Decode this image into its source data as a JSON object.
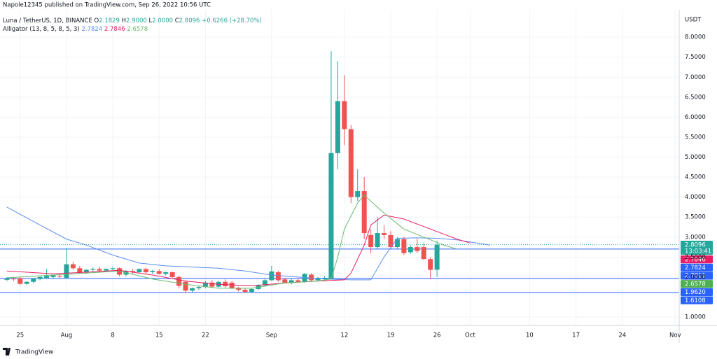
{
  "header": "Napole12345 published on TradingView.com, Sep 26, 2022 10:56 UTC",
  "chart_data": {
    "type": "candlestick",
    "symbol": "Luna / TetherUS, 1D, BINANCE",
    "ohlc_keys": [
      "O",
      "H",
      "L",
      "C"
    ],
    "ohlc_values": [
      "2.1829",
      "2.9000",
      "2.0000",
      "2.8096"
    ],
    "change": "+0.6266 (+28.70%)",
    "indicator": "Alligator (13, 8, 5, 8, 5, 3)",
    "unit": "USDT",
    "up_color": "#26a69a",
    "down_color": "#ef5350",
    "x": [
      -2,
      -1,
      0,
      1,
      2,
      3,
      4,
      5,
      6,
      7,
      8,
      9,
      10,
      11,
      12,
      13,
      14,
      15,
      16,
      17,
      18,
      19,
      20,
      21,
      22,
      23,
      24,
      25,
      26,
      27,
      28,
      29,
      30,
      31,
      32,
      33,
      34,
      35,
      36,
      37,
      38,
      39,
      40,
      41,
      42,
      43,
      44,
      45,
      46,
      47,
      48,
      49,
      50,
      51,
      52,
      53,
      54,
      55,
      56,
      57,
      58,
      59,
      60,
      61,
      62,
      63
    ],
    "open": [
      1.93,
      1.96,
      1.97,
      1.83,
      1.88,
      1.95,
      1.98,
      2.0,
      2.03,
      1.98,
      2.32,
      2.22,
      2.12,
      2.18,
      2.2,
      2.16,
      2.2,
      2.22,
      2.06,
      2.15,
      2.12,
      2.2,
      2.12,
      2.15,
      2.08,
      2.12,
      2.0,
      1.88,
      1.66,
      1.72,
      1.75,
      1.86,
      1.76,
      1.88,
      1.86,
      1.72,
      1.68,
      1.63,
      1.7,
      1.79,
      1.92,
      2.12,
      1.94,
      1.86,
      1.92,
      1.88,
      2.06,
      1.92,
      1.96,
      1.96,
      5.1,
      6.4,
      5.7,
      4.0,
      4.15,
      3.05,
      2.75,
      3.1,
      3.05,
      2.75,
      2.95,
      2.62,
      2.75,
      2.75,
      2.45,
      2.1829
    ],
    "high": [
      2.0,
      1.99,
      2.0,
      1.9,
      1.98,
      2.02,
      2.2,
      2.06,
      2.07,
      2.72,
      2.38,
      2.28,
      2.2,
      2.24,
      2.25,
      2.22,
      2.26,
      2.24,
      2.18,
      2.2,
      2.22,
      2.24,
      2.18,
      2.2,
      2.14,
      2.14,
      2.04,
      1.92,
      1.74,
      1.78,
      1.9,
      1.92,
      1.9,
      1.94,
      1.9,
      1.76,
      1.72,
      1.72,
      1.82,
      1.96,
      2.28,
      2.16,
      1.98,
      1.95,
      1.96,
      2.1,
      2.1,
      2.0,
      2.02,
      7.65,
      7.4,
      7.05,
      5.8,
      4.7,
      4.5,
      3.2,
      3.5,
      3.3,
      3.15,
      3.0,
      3.0,
      2.8,
      2.95,
      2.85,
      2.5,
      2.9
    ],
    "low": [
      1.9,
      1.9,
      1.8,
      1.8,
      1.85,
      1.92,
      1.95,
      1.96,
      1.98,
      1.95,
      2.18,
      2.08,
      2.08,
      2.14,
      2.12,
      2.12,
      2.16,
      2.02,
      2.02,
      2.08,
      2.1,
      2.08,
      2.08,
      2.06,
      2.04,
      1.98,
      1.72,
      1.6,
      1.62,
      1.68,
      1.72,
      1.72,
      1.74,
      1.74,
      1.7,
      1.64,
      1.6,
      1.6,
      1.68,
      1.76,
      1.9,
      1.88,
      1.84,
      1.82,
      1.86,
      1.86,
      1.88,
      1.9,
      1.92,
      1.94,
      4.7,
      5.3,
      3.85,
      3.9,
      2.95,
      2.6,
      2.7,
      2.95,
      2.7,
      2.7,
      2.55,
      2.58,
      2.6,
      2.42,
      1.96,
      2.0
    ],
    "close": [
      1.96,
      1.95,
      1.83,
      1.88,
      1.96,
      2.0,
      2.03,
      2.04,
      2.02,
      2.32,
      2.22,
      2.12,
      2.18,
      2.2,
      2.16,
      2.2,
      2.22,
      2.06,
      2.15,
      2.12,
      2.2,
      2.12,
      2.15,
      2.08,
      2.12,
      2.0,
      1.78,
      1.66,
      1.72,
      1.75,
      1.86,
      1.76,
      1.88,
      1.77,
      1.72,
      1.68,
      1.63,
      1.7,
      1.8,
      1.92,
      2.14,
      1.92,
      1.86,
      1.92,
      1.88,
      2.08,
      1.92,
      1.98,
      1.98,
      5.1,
      6.4,
      5.7,
      4.0,
      4.15,
      3.1,
      2.75,
      3.1,
      3.05,
      2.75,
      2.95,
      2.6,
      2.75,
      2.65,
      2.45,
      2.18,
      2.8096
    ],
    "alligator": [
      {
        "color": "#5b8def",
        "last": "2.7824",
        "x": [
          -2,
          3,
          7,
          10,
          14,
          18,
          22,
          26,
          30,
          34,
          38,
          42,
          46,
          50,
          53,
          55,
          57,
          60,
          63,
          66,
          71
        ],
        "values": [
          3.75,
          3.3,
          2.95,
          2.8,
          2.55,
          2.35,
          2.28,
          2.25,
          2.22,
          2.15,
          2.05,
          2.0,
          1.95,
          1.93,
          1.93,
          2.5,
          2.97,
          2.98,
          2.97,
          2.93,
          2.8
        ]
      },
      {
        "color": "#e91e63",
        "last": "2.7846",
        "x": [
          -2,
          5,
          10,
          15,
          20,
          25,
          30,
          35,
          40,
          45,
          49,
          50,
          52,
          53,
          55,
          58,
          62,
          66,
          68
        ],
        "values": [
          2.15,
          2.08,
          2.12,
          2.17,
          2.05,
          1.9,
          1.82,
          1.78,
          1.85,
          1.9,
          1.93,
          2.1,
          2.8,
          3.3,
          3.55,
          3.45,
          3.2,
          2.95,
          2.85
        ]
      },
      {
        "color": "#66bb6a",
        "last": "2.6578",
        "x": [
          -2,
          5,
          10,
          15,
          20,
          25,
          30,
          35,
          40,
          45,
          47,
          48,
          49,
          51,
          52,
          55,
          58,
          61,
          64,
          66
        ],
        "values": [
          1.98,
          2.05,
          2.1,
          2.15,
          1.95,
          1.82,
          1.72,
          1.72,
          1.85,
          1.9,
          1.95,
          2.5,
          3.2,
          3.85,
          4.05,
          3.6,
          3.2,
          3.0,
          2.8,
          2.7
        ]
      }
    ],
    "hlines": [
      2.7011,
      1.962,
      1.6108
    ],
    "hline_color": "#2962ff",
    "price_tags": [
      {
        "value": 2.8096,
        "color": "#26a69a"
      },
      {
        "value": 2.7846,
        "color": "#e91e63"
      },
      {
        "value": 2.7824,
        "color": "#2962ff"
      },
      {
        "value": 2.7011,
        "color": "#2962ff"
      },
      {
        "value": 2.6578,
        "color": "#4caf50"
      },
      {
        "value": 1.962,
        "label": "1.9620",
        "color": "#2962ff"
      },
      {
        "value": 1.6108,
        "color": "#2962ff"
      }
    ],
    "countdown": "13:03:41",
    "xlim": [
      -2.2,
      99.6
    ],
    "xticks": [
      {
        "value": 0,
        "label": "25"
      },
      {
        "value": 7,
        "label": "Aug"
      },
      {
        "value": 14,
        "label": "8"
      },
      {
        "value": 21,
        "label": "15"
      },
      {
        "value": 28,
        "label": "22"
      },
      {
        "value": 38,
        "label": "Sep"
      },
      {
        "value": 49,
        "label": "12"
      },
      {
        "value": 56,
        "label": "19"
      },
      {
        "value": 63,
        "label": "26"
      },
      {
        "value": 68,
        "label": "Oct"
      },
      {
        "value": 77,
        "label": "10"
      },
      {
        "value": 84,
        "label": "17"
      },
      {
        "value": 91,
        "label": "24"
      },
      {
        "value": 99,
        "label": "Nov"
      }
    ],
    "ylim": [
      0.79,
      8.93
    ],
    "yticks": [
      {
        "value": 1,
        "label": "1.0000"
      },
      {
        "value": 2,
        "label": "2.0000"
      },
      {
        "value": 2.5,
        "label": "2.5000"
      },
      {
        "value": 3,
        "label": "3.0000"
      },
      {
        "value": 3.5,
        "label": "3.5000"
      },
      {
        "value": 4,
        "label": "4.0000"
      },
      {
        "value": 4.5,
        "label": "4.5000"
      },
      {
        "value": 5,
        "label": "5.0000"
      },
      {
        "value": 5.5,
        "label": "5.5000"
      },
      {
        "value": 6,
        "label": "6.0000"
      },
      {
        "value": 6.5,
        "label": "6.5000"
      },
      {
        "value": 7,
        "label": "7.0000"
      },
      {
        "value": 7.5,
        "label": "7.5000"
      },
      {
        "value": 8,
        "label": "8.0000"
      }
    ],
    "grid": true
  },
  "footer": "TradingView"
}
